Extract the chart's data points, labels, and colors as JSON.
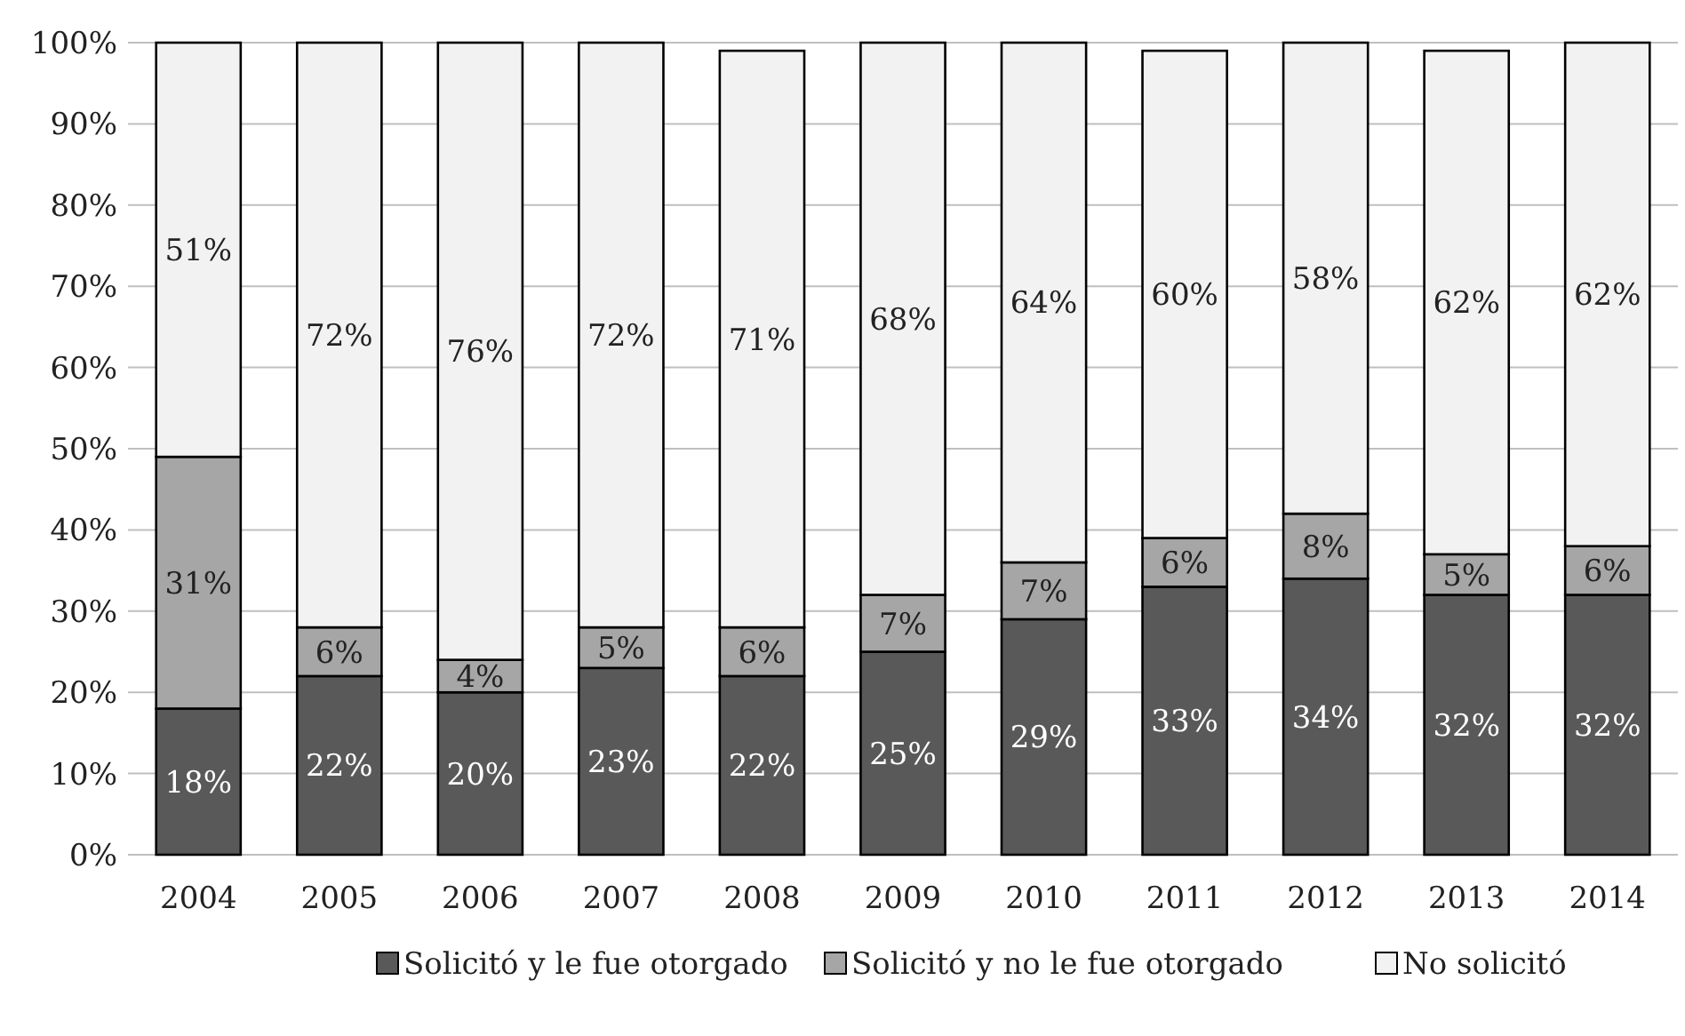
{
  "chart_data": {
    "type": "bar",
    "stacked": true,
    "categories": [
      "2004",
      "2005",
      "2006",
      "2007",
      "2008",
      "2009",
      "2010",
      "2011",
      "2012",
      "2013",
      "2014"
    ],
    "series": [
      {
        "name": "Solicitó y le fue otorgado",
        "color": "#595959",
        "values": [
          18,
          22,
          20,
          23,
          22,
          25,
          29,
          33,
          34,
          32,
          32
        ],
        "value_labels": [
          "18%",
          "22%",
          "20%",
          "23%",
          "22%",
          "25%",
          "29%",
          "33%",
          "34%",
          "32%",
          "32%"
        ]
      },
      {
        "name": "Solicitó y no le fue otorgado",
        "color": "#a6a6a6",
        "values": [
          31,
          6,
          4,
          5,
          6,
          7,
          7,
          6,
          8,
          5,
          6
        ],
        "value_labels": [
          "31%",
          "6%",
          "4%",
          "5%",
          "6%",
          "7%",
          "7%",
          "6%",
          "8%",
          "5%",
          "6%"
        ]
      },
      {
        "name": "No solicitó",
        "color": "#f2f2f2",
        "values": [
          51,
          72,
          76,
          72,
          71,
          68,
          64,
          60,
          58,
          62,
          62
        ],
        "value_labels": [
          "51%",
          "72%",
          "76%",
          "72%",
          "71%",
          "68%",
          "64%",
          "60%",
          "58%",
          "62%",
          "62%"
        ]
      }
    ],
    "ylim": [
      0,
      100
    ],
    "yticks": [
      {
        "value": 0,
        "label": "0%"
      },
      {
        "value": 10,
        "label": "10%"
      },
      {
        "value": 20,
        "label": "20%"
      },
      {
        "value": 30,
        "label": "30%"
      },
      {
        "value": 40,
        "label": "40%"
      },
      {
        "value": 50,
        "label": "50%"
      },
      {
        "value": 60,
        "label": "60%"
      },
      {
        "value": 70,
        "label": "70%"
      },
      {
        "value": 80,
        "label": "80%"
      },
      {
        "value": 90,
        "label": "90%"
      },
      {
        "value": 100,
        "label": "100%"
      }
    ],
    "grid": "y",
    "legend": "bottom"
  }
}
